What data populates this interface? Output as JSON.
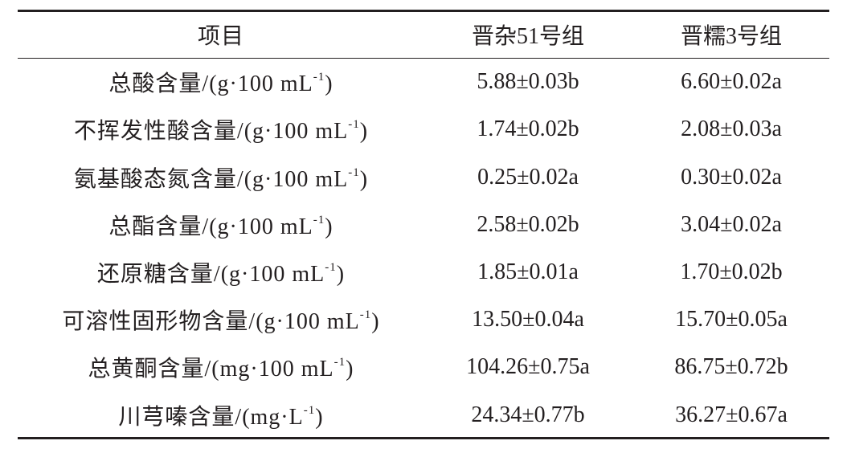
{
  "table": {
    "header": [
      "项目",
      "晋杂51号组",
      "晋糯3号组"
    ],
    "rows": [
      [
        {
          "main": "总酸含量/(g·100 mL",
          "sup": "-1",
          "end": ")"
        },
        "5.88±0.03b",
        "6.60±0.02a"
      ],
      [
        {
          "main": "不挥发性酸含量/(g·100 mL",
          "sup": "-1",
          "end": ")"
        },
        "1.74±0.02b",
        "2.08±0.03a"
      ],
      [
        {
          "main": "氨基酸态氮含量/(g·100 mL",
          "sup": "-1",
          "end": ")"
        },
        "0.25±0.02a",
        "0.30±0.02a"
      ],
      [
        {
          "main": "总酯含量/(g·100 mL",
          "sup": "-1",
          "end": ")"
        },
        "2.58±0.02b",
        "3.04±0.02a"
      ],
      [
        {
          "main": "还原糖含量/(g·100 mL",
          "sup": "-1",
          "end": ")"
        },
        "1.85±0.01a",
        "1.70±0.02b"
      ],
      [
        {
          "main": "可溶性固形物含量/(g·100 mL",
          "sup": "-1",
          "end": ")"
        },
        "13.50±0.04a",
        "15.70±0.05a"
      ],
      [
        {
          "main": "总黄酮含量/(mg·100 mL",
          "sup": "-1",
          "end": ")"
        },
        "104.26±0.75a",
        "86.75±0.72b"
      ],
      [
        {
          "main": "川芎嗪含量/(mg·L",
          "sup": "-1",
          "end": ")"
        },
        "24.34±0.77b",
        "36.27±0.67a"
      ]
    ]
  }
}
